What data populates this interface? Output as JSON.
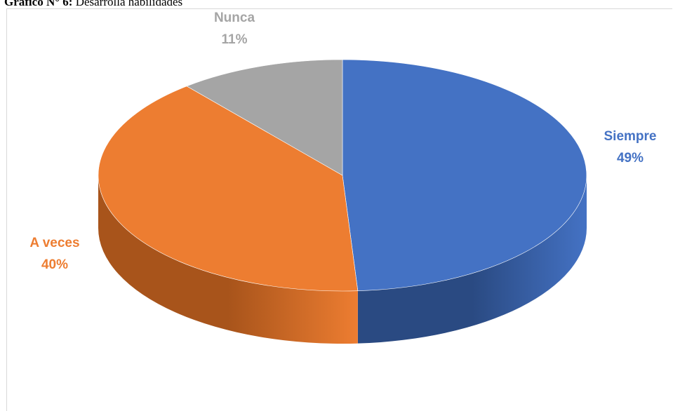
{
  "caption": {
    "label": "Gráfico N° 6:",
    "text": "Desarrolla habilidades"
  },
  "chart_data": {
    "type": "pie",
    "style": "3d",
    "title": "",
    "slices": [
      {
        "name": "Siempre",
        "value": 49,
        "label": "49%",
        "color": "#4472C4",
        "side_color": "#2A4A82"
      },
      {
        "name": "A veces",
        "value": 40,
        "label": "40%",
        "color": "#ED7D31",
        "side_color": "#A8541B"
      },
      {
        "name": "Nunca",
        "value": 11,
        "label": "11%",
        "color": "#A5A5A5",
        "side_color": "#6E6E6E"
      }
    ],
    "legend": "none",
    "data_labels": "outside"
  }
}
